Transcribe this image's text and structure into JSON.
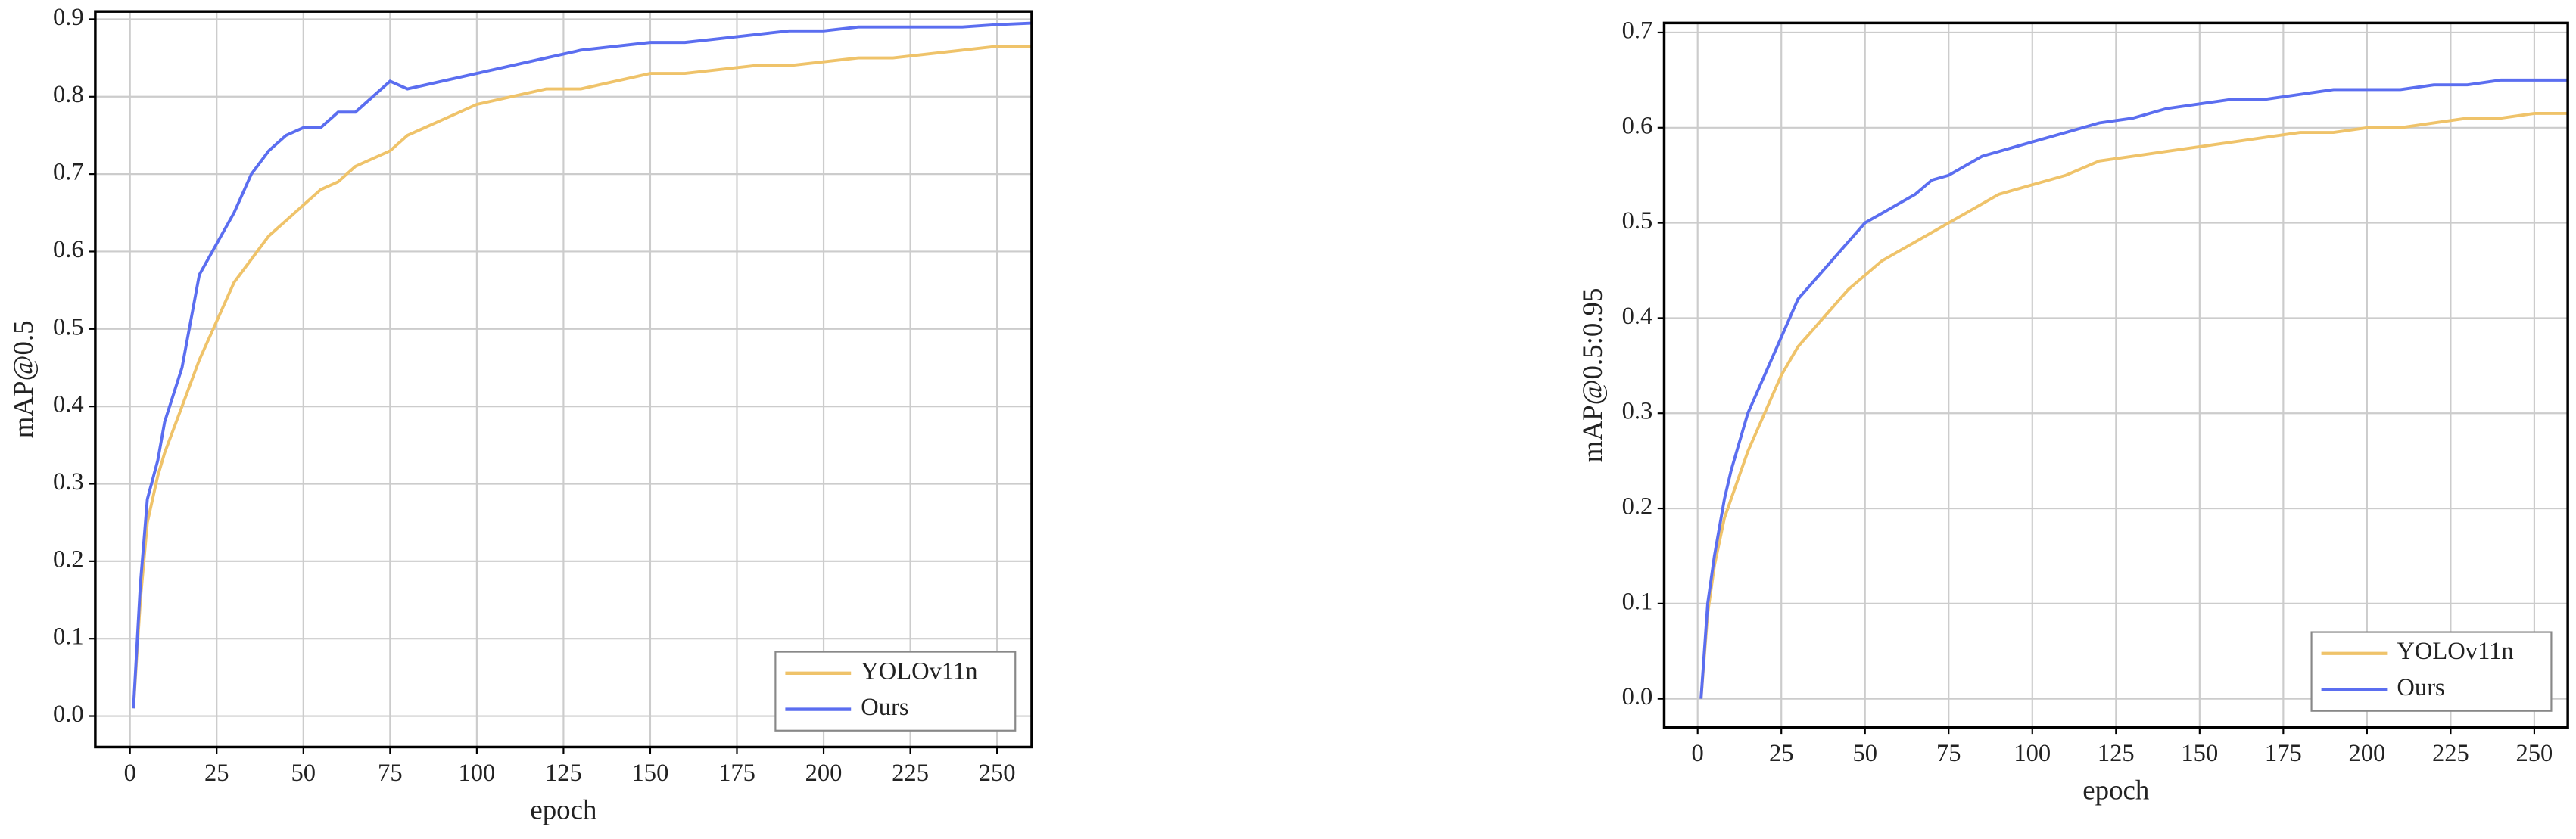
{
  "chart_data": [
    {
      "type": "line",
      "xlabel": "epoch",
      "ylabel": "mAP@0.5",
      "x": [
        1,
        3,
        5,
        8,
        10,
        15,
        20,
        25,
        30,
        35,
        40,
        45,
        50,
        55,
        60,
        65,
        70,
        75,
        80,
        85,
        90,
        95,
        100,
        110,
        120,
        130,
        140,
        150,
        160,
        170,
        180,
        190,
        200,
        210,
        220,
        230,
        240,
        250,
        260
      ],
      "series": [
        {
          "name": "YOLOv11n",
          "color": "#efc36a",
          "values": [
            0.01,
            0.15,
            0.25,
            0.31,
            0.34,
            0.4,
            0.46,
            0.51,
            0.56,
            0.59,
            0.62,
            0.64,
            0.66,
            0.68,
            0.69,
            0.71,
            0.72,
            0.73,
            0.75,
            0.76,
            0.77,
            0.78,
            0.79,
            0.8,
            0.81,
            0.81,
            0.82,
            0.83,
            0.83,
            0.835,
            0.84,
            0.84,
            0.845,
            0.85,
            0.85,
            0.855,
            0.86,
            0.865,
            0.865
          ]
        },
        {
          "name": "Ours",
          "color": "#5b6ef0",
          "values": [
            0.01,
            0.17,
            0.28,
            0.33,
            0.38,
            0.45,
            0.57,
            0.61,
            0.65,
            0.7,
            0.73,
            0.75,
            0.76,
            0.76,
            0.78,
            0.78,
            0.8,
            0.82,
            0.81,
            0.815,
            0.82,
            0.825,
            0.83,
            0.84,
            0.85,
            0.86,
            0.865,
            0.87,
            0.87,
            0.875,
            0.88,
            0.885,
            0.885,
            0.89,
            0.89,
            0.89,
            0.89,
            0.893,
            0.895
          ]
        }
      ],
      "xlim": [
        -10,
        260
      ],
      "xticks": [
        0,
        25,
        50,
        75,
        100,
        125,
        150,
        175,
        200,
        225,
        250
      ],
      "ylim": [
        -0.04,
        0.91
      ],
      "yticks": [
        {
          "value": 0,
          "label": "0.0"
        },
        0.1,
        0.2,
        0.3,
        0.4,
        0.5,
        0.6,
        0.7,
        0.8,
        0.9
      ],
      "grid": true,
      "legend": "lower right"
    },
    {
      "type": "line",
      "xlabel": "epoch",
      "ylabel": "mAP@0.5:0.95",
      "x": [
        1,
        3,
        5,
        8,
        10,
        15,
        20,
        25,
        30,
        35,
        40,
        45,
        50,
        55,
        60,
        65,
        70,
        75,
        80,
        85,
        90,
        95,
        100,
        110,
        120,
        130,
        140,
        150,
        160,
        170,
        180,
        190,
        200,
        210,
        220,
        230,
        240,
        250,
        260
      ],
      "series": [
        {
          "name": "YOLOv11n",
          "color": "#efc36a",
          "values": [
            0,
            0.09,
            0.14,
            0.19,
            0.21,
            0.26,
            0.3,
            0.34,
            0.37,
            0.39,
            0.41,
            0.43,
            0.445,
            0.46,
            0.47,
            0.48,
            0.49,
            0.5,
            0.51,
            0.52,
            0.53,
            0.535,
            0.54,
            0.55,
            0.565,
            0.57,
            0.575,
            0.58,
            0.585,
            0.59,
            0.595,
            0.595,
            0.6,
            0.6,
            0.605,
            0.61,
            0.61,
            0.615,
            0.615
          ]
        },
        {
          "name": "Ours",
          "color": "#5b6ef0",
          "values": [
            0,
            0.1,
            0.15,
            0.21,
            0.24,
            0.3,
            0.34,
            0.38,
            0.42,
            0.44,
            0.46,
            0.48,
            0.5,
            0.51,
            0.52,
            0.53,
            0.545,
            0.55,
            0.56,
            0.57,
            0.575,
            0.58,
            0.585,
            0.595,
            0.605,
            0.61,
            0.62,
            0.625,
            0.63,
            0.63,
            0.635,
            0.64,
            0.64,
            0.64,
            0.645,
            0.645,
            0.65,
            0.65,
            0.65
          ]
        }
      ],
      "xlim": [
        -10,
        260
      ],
      "xticks": [
        0,
        25,
        50,
        75,
        100,
        125,
        150,
        175,
        200,
        225,
        250
      ],
      "ylim": [
        -0.03,
        0.71
      ],
      "yticks": [
        {
          "value": 0,
          "label": "0.0"
        },
        0.1,
        0.2,
        0.3,
        0.4,
        0.5,
        0.6,
        0.7
      ],
      "grid": true,
      "legend": "lower right"
    }
  ]
}
